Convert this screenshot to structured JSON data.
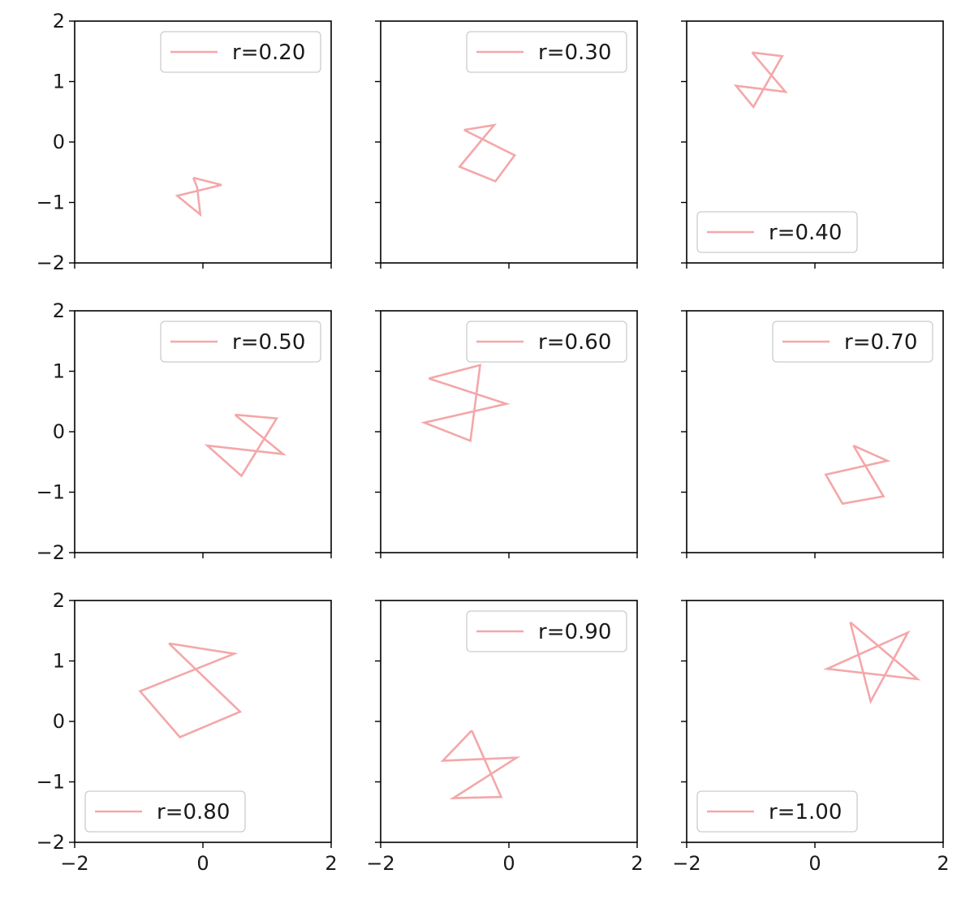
{
  "figure": {
    "line_color": "#f4a7a9",
    "share_axes": true
  },
  "chart_data": [
    {
      "type": "line",
      "row": 0,
      "col": 0,
      "legend": "r=0.20",
      "legend_loc": "upper right",
      "center": [
        0.0,
        -0.9
      ],
      "radius": 0.3,
      "xlim": [
        -2,
        2
      ],
      "ylim": [
        -2,
        2
      ],
      "xticks": [
        -2,
        0,
        2
      ],
      "yticks": [
        -2,
        -1,
        0,
        1,
        2
      ],
      "series": [
        {
          "name": "r=0.20",
          "x": [
            -0.15,
            0.29,
            -0.4,
            -0.04,
            -0.09,
            -0.15
          ],
          "y": [
            -0.59,
            -0.71,
            -0.89,
            -1.2,
            -0.75,
            -0.59
          ]
        }
      ]
    },
    {
      "type": "line",
      "row": 0,
      "col": 1,
      "legend": "r=0.30",
      "legend_loc": "upper right",
      "center": [
        -0.3,
        -0.15
      ],
      "radius": 0.45,
      "xlim": [
        -2,
        2
      ],
      "ylim": [
        -2,
        2
      ],
      "xticks": [
        -2,
        0,
        2
      ],
      "yticks": [
        -2,
        -1,
        0,
        1,
        2
      ],
      "series": [
        {
          "name": "r=0.30",
          "x": [
            -0.7,
            0.09,
            -0.21,
            -0.77,
            -0.23,
            -0.7
          ],
          "y": [
            0.2,
            -0.22,
            -0.65,
            -0.41,
            0.28,
            0.2
          ]
        }
      ]
    },
    {
      "type": "line",
      "row": 0,
      "col": 2,
      "legend": "r=0.40",
      "legend_loc": "lower left",
      "center": [
        -0.8,
        1.0
      ],
      "radius": 0.5,
      "xlim": [
        -2,
        2
      ],
      "ylim": [
        -2,
        2
      ],
      "xticks": [
        -2,
        0,
        2
      ],
      "yticks": [
        -2,
        -1,
        0,
        1,
        2
      ],
      "series": [
        {
          "name": "r=0.40",
          "x": [
            -0.98,
            -0.46,
            -1.23,
            -0.96,
            -0.51,
            -0.98
          ],
          "y": [
            1.48,
            0.83,
            0.93,
            0.58,
            1.42,
            1.48
          ]
        }
      ]
    },
    {
      "type": "line",
      "row": 1,
      "col": 0,
      "legend": "r=0.50",
      "legend_loc": "upper right",
      "center": [
        0.75,
        -0.2
      ],
      "radius": 0.55,
      "xlim": [
        -2,
        2
      ],
      "ylim": [
        -2,
        2
      ],
      "xticks": [
        -2,
        0,
        2
      ],
      "yticks": [
        -2,
        -1,
        0,
        1,
        2
      ],
      "series": [
        {
          "name": "r=0.50",
          "x": [
            0.5,
            1.25,
            0.07,
            0.6,
            1.15,
            0.5
          ],
          "y": [
            0.28,
            -0.37,
            -0.23,
            -0.73,
            0.22,
            0.28
          ]
        }
      ]
    },
    {
      "type": "line",
      "row": 1,
      "col": 1,
      "legend": "r=0.60",
      "legend_loc": "upper right",
      "center": [
        -0.55,
        0.45
      ],
      "radius": 0.7,
      "xlim": [
        -2,
        2
      ],
      "ylim": [
        -2,
        2
      ],
      "xticks": [
        -2,
        0,
        2
      ],
      "yticks": [
        -2,
        -1,
        0,
        1,
        2
      ],
      "series": [
        {
          "name": "r=0.60",
          "x": [
            -1.25,
            -0.04,
            -1.32,
            -0.6,
            -0.45,
            -1.25
          ],
          "y": [
            0.88,
            0.46,
            0.15,
            -0.15,
            1.1,
            0.88
          ]
        }
      ]
    },
    {
      "type": "line",
      "row": 1,
      "col": 2,
      "legend": "r=0.70",
      "legend_loc": "upper right",
      "center": [
        0.7,
        -0.7
      ],
      "radius": 0.5,
      "xlim": [
        -2,
        2
      ],
      "ylim": [
        -2,
        2
      ],
      "xticks": [
        -2,
        0,
        2
      ],
      "yticks": [
        -2,
        -1,
        0,
        1,
        2
      ],
      "series": [
        {
          "name": "r=0.70",
          "x": [
            0.6,
            1.07,
            0.43,
            0.17,
            1.13,
            0.6
          ],
          "y": [
            -0.23,
            -1.07,
            -1.19,
            -0.71,
            -0.48,
            -0.23
          ]
        }
      ]
    },
    {
      "type": "line",
      "row": 2,
      "col": 0,
      "legend": "r=0.80",
      "legend_loc": "lower left",
      "center": [
        -0.15,
        0.55
      ],
      "radius": 0.8,
      "xlim": [
        -2,
        2
      ],
      "ylim": [
        -2,
        2
      ],
      "xticks": [
        -2,
        0,
        2
      ],
      "yticks": [
        -2,
        -1,
        0,
        1,
        2
      ],
      "series": [
        {
          "name": "r=0.80",
          "x": [
            -0.53,
            0.58,
            -0.36,
            -0.98,
            0.49,
            -0.53
          ],
          "y": [
            1.29,
            0.16,
            -0.26,
            0.5,
            1.12,
            1.29
          ]
        }
      ]
    },
    {
      "type": "line",
      "row": 2,
      "col": 1,
      "legend": "r=0.90",
      "legend_loc": "upper right",
      "center": [
        -0.5,
        -0.75
      ],
      "radius": 0.6,
      "xlim": [
        -2,
        2
      ],
      "ylim": [
        -2,
        2
      ],
      "xticks": [
        -2,
        0,
        2
      ],
      "yticks": [
        -2,
        -1,
        0,
        1,
        2
      ],
      "series": [
        {
          "name": "r=0.90",
          "x": [
            -0.58,
            -0.12,
            -0.87,
            0.12,
            -1.03,
            -0.58
          ],
          "y": [
            -0.15,
            -1.25,
            -1.27,
            -0.6,
            -0.65,
            -0.15
          ]
        }
      ]
    },
    {
      "type": "line",
      "row": 2,
      "col": 2,
      "legend": "r=1.00",
      "legend_loc": "lower left",
      "center": [
        0.95,
        1.0
      ],
      "radius": 0.7,
      "xlim": [
        -2,
        2
      ],
      "ylim": [
        -2,
        2
      ],
      "xticks": [
        -2,
        0,
        2
      ],
      "yticks": [
        -2,
        -1,
        0,
        1,
        2
      ],
      "series": [
        {
          "name": "r=1.00",
          "x": [
            0.55,
            1.6,
            0.19,
            1.45,
            0.87,
            0.55
          ],
          "y": [
            1.64,
            0.7,
            0.87,
            1.47,
            0.33,
            1.64
          ]
        }
      ]
    }
  ]
}
